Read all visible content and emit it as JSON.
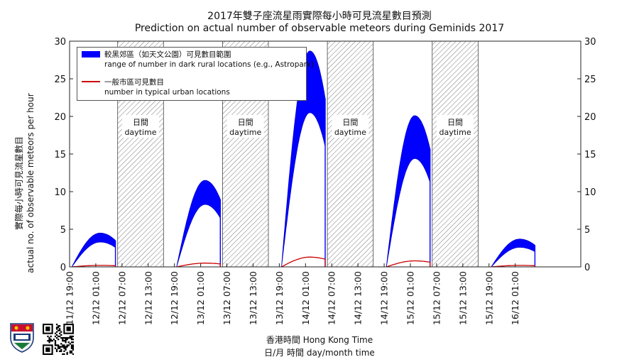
{
  "title_zh": "2017年雙子座流星雨實際每小時可見流星數目預測",
  "title_en": "Prediction on actual number of observable meteors during Geminids 2017",
  "ylabel_zh": "實際每小時可見流星數目",
  "ylabel_en": "actual no. of observable meteors per hour",
  "xlabel_line1": "香港時間 Hong Kong Time",
  "xlabel_line2": "日/月 時間 day/month time",
  "legend": {
    "rural_zh": "較黑郊區（如天文公園）可見數目範圍",
    "rural_en": "range of number in dark rural locations (e.g., Astropark)",
    "urban_zh": "一般市區可見數目",
    "urban_en": "number in typical urban locations"
  },
  "daytime_zh": "日間",
  "daytime_en": "daytime",
  "colors": {
    "rural": "#0000ff",
    "urban": "#cc0000"
  },
  "logo_icon": "hku-crest-icon",
  "qr_icon": "qr-code-icon",
  "chart_data": {
    "type": "area",
    "x_unit": "hours from 11/12 19:00 (Hong Kong Time)",
    "xlim": [
      0,
      117
    ],
    "ylim": [
      0,
      30
    ],
    "y_ticks": [
      0,
      5,
      10,
      15,
      20,
      25,
      30
    ],
    "x_tick_labels": [
      "11/12 19:00",
      "12/12 01:00",
      "12/12 07:00",
      "12/12 13:00",
      "12/12 19:00",
      "13/12 01:00",
      "13/12 07:00",
      "13/12 13:00",
      "13/12 19:00",
      "14/12 01:00",
      "14/12 07:00",
      "14/12 13:00",
      "14/12 19:00",
      "15/12 01:00",
      "15/12 07:00",
      "15/12 13:00",
      "15/12 19:00",
      "16/12 01:00"
    ],
    "grid": false,
    "legend_position": "top-left",
    "daytime_bands": [
      [
        11,
        21.5
      ],
      [
        35,
        45.5
      ],
      [
        59,
        69.5
      ],
      [
        83,
        93.5
      ]
    ],
    "nights": [
      {
        "start": 0.5,
        "end": 10.5,
        "peak": 7,
        "rural_upper": 4.5,
        "rural_lower": 3.3,
        "urban": 0.2
      },
      {
        "start": 24.5,
        "end": 34.5,
        "peak": 31,
        "rural_upper": 11.5,
        "rural_lower": 8.3,
        "urban": 0.5
      },
      {
        "start": 48.5,
        "end": 58.5,
        "peak": 55,
        "rural_upper": 28.7,
        "rural_lower": 20.5,
        "urban": 1.3
      },
      {
        "start": 72.5,
        "end": 82.5,
        "peak": 79,
        "rural_upper": 20.1,
        "rural_lower": 14.4,
        "urban": 0.8
      },
      {
        "start": 96.5,
        "end": 106.5,
        "peak": 103,
        "rural_upper": 3.7,
        "rural_lower": 2.6,
        "urban": 0.2
      }
    ]
  }
}
